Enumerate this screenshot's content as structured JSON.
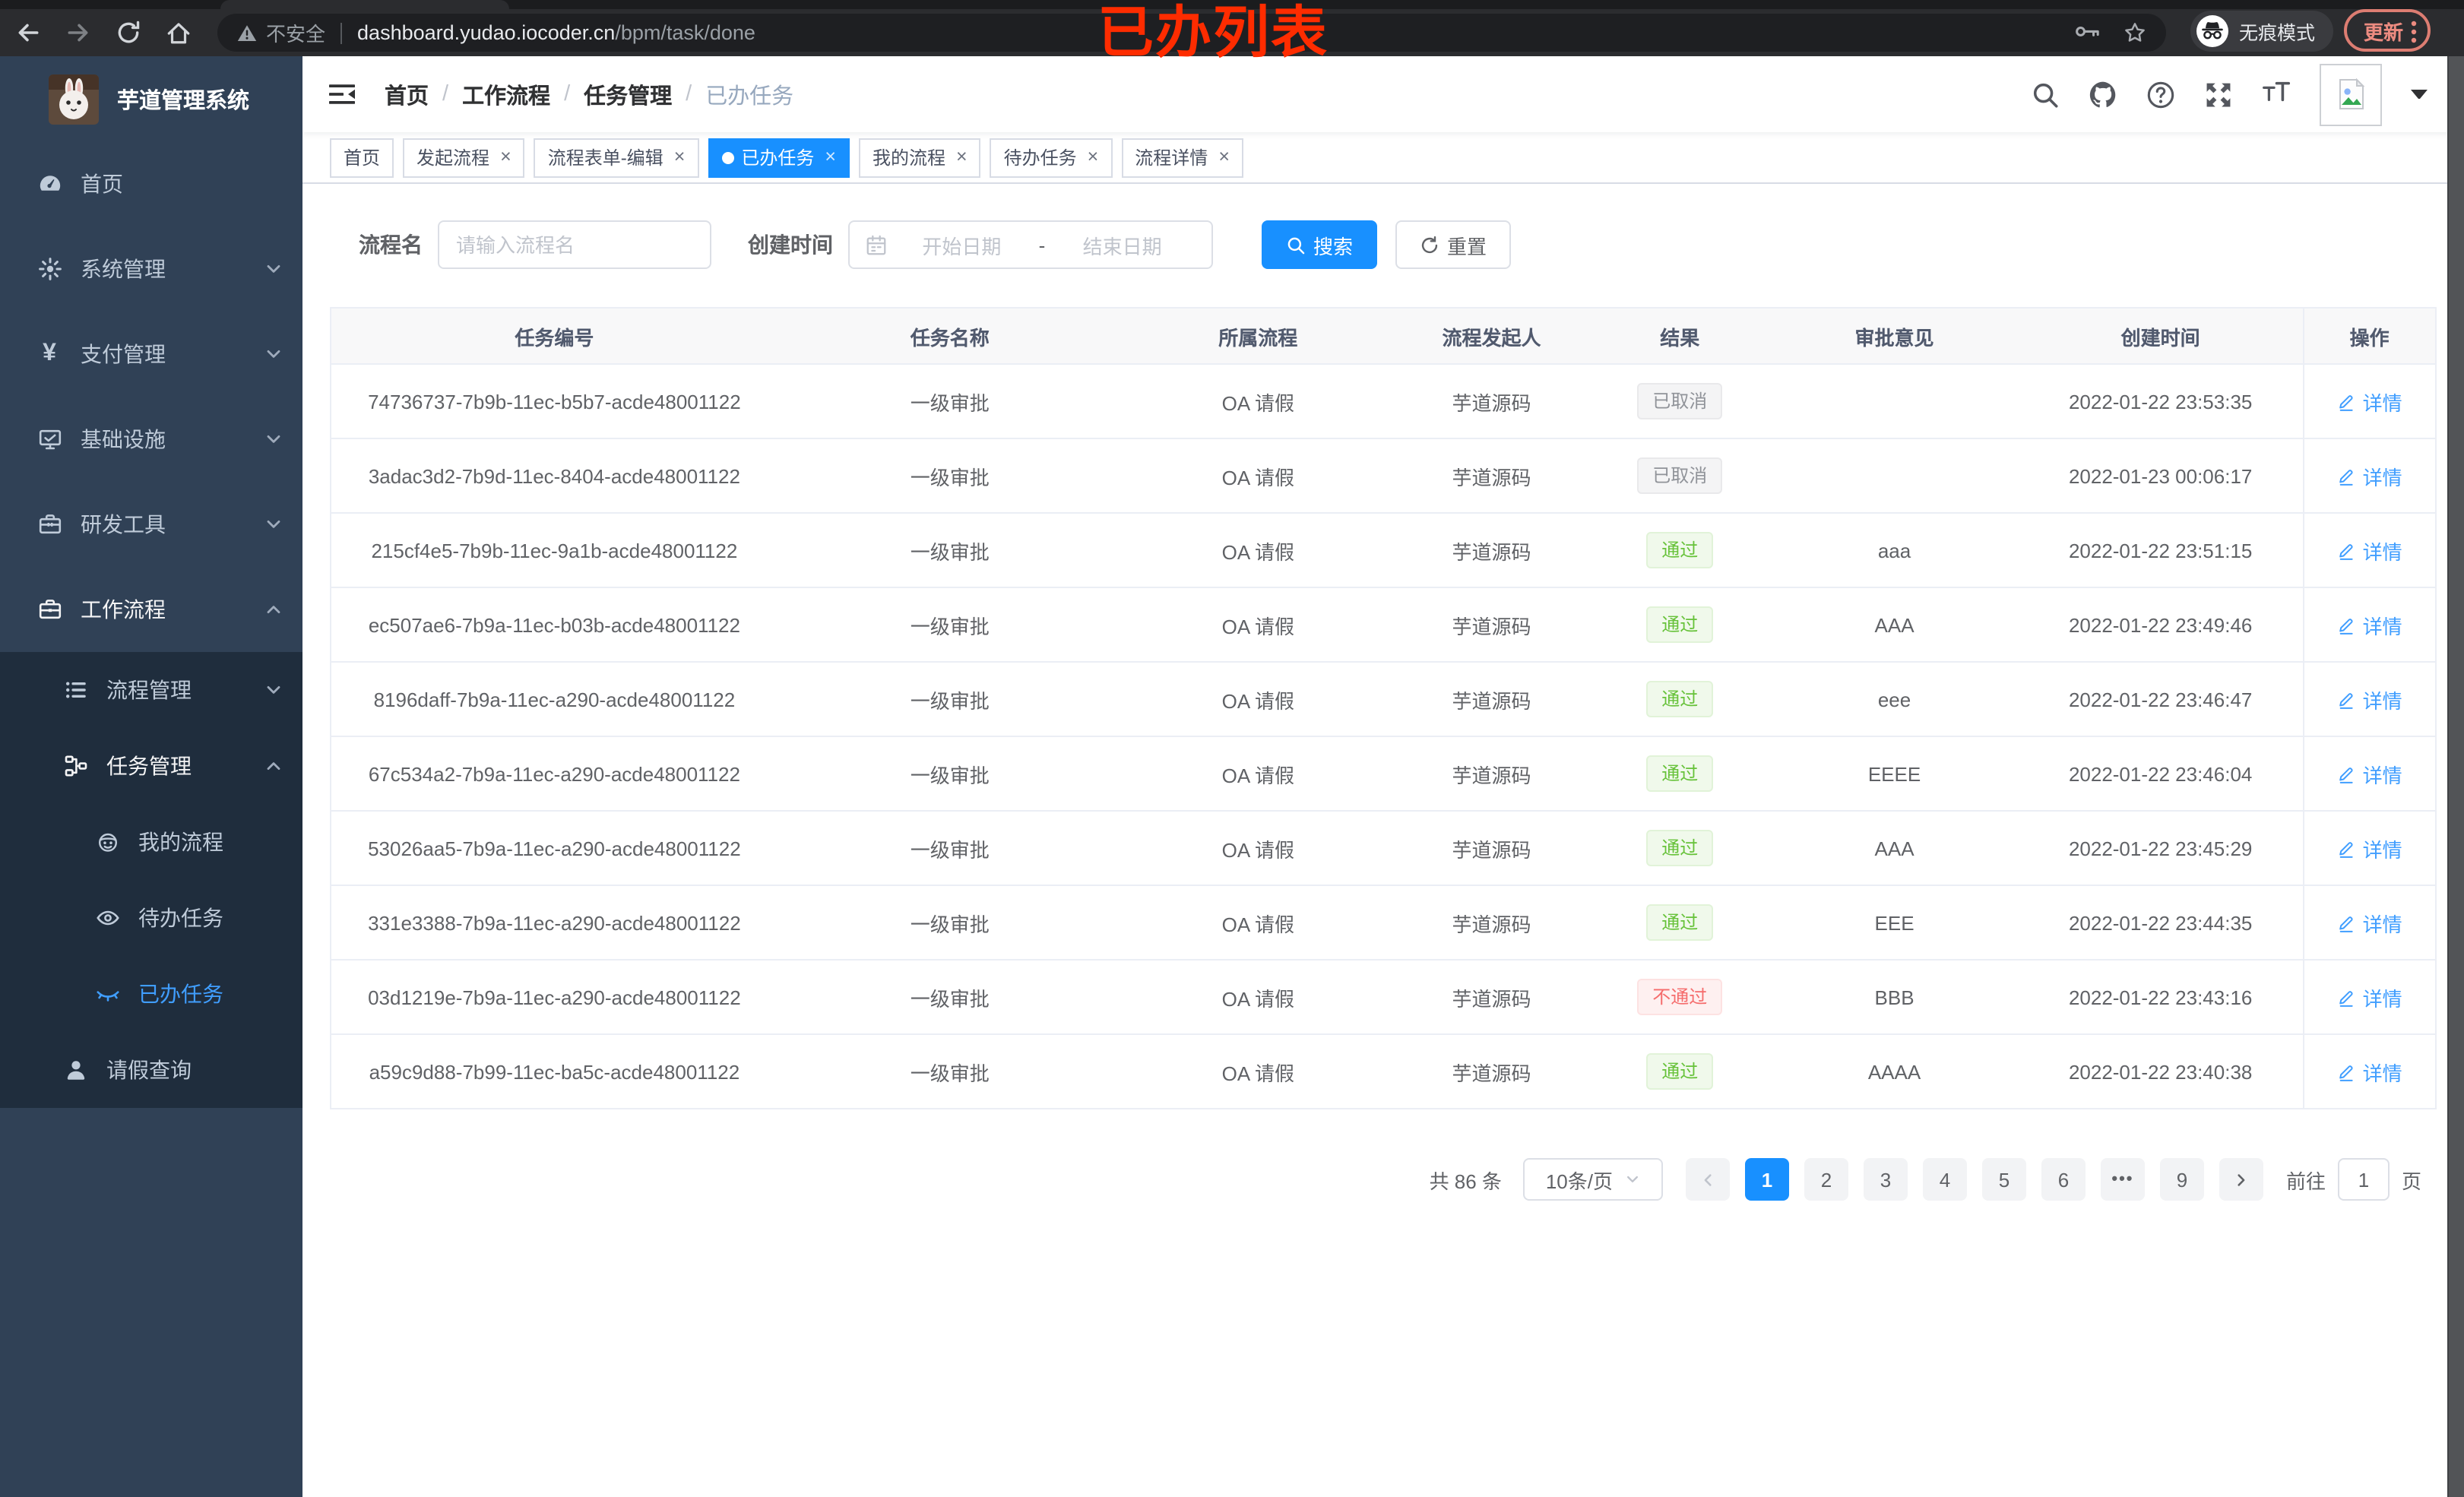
{
  "browser": {
    "security_label": "不安全",
    "url_host": "dashboard.yudao.iocoder.cn",
    "url_path": "/bpm/task/done",
    "incognito_label": "无痕模式",
    "update_label": "更新"
  },
  "annotation": "已办列表",
  "sidebar": {
    "logo_title": "芋道管理系统",
    "menu": [
      {
        "label": "首页",
        "icon": "dashboard-icon",
        "depth": 0,
        "submenu": false,
        "chevron": null,
        "emphasized": false,
        "active": false
      },
      {
        "label": "系统管理",
        "icon": "gear-icon",
        "depth": 0,
        "submenu": false,
        "chevron": "down",
        "emphasized": false,
        "active": false
      },
      {
        "label": "支付管理",
        "icon": "yen-icon",
        "depth": 0,
        "submenu": false,
        "chevron": "down",
        "emphasized": false,
        "active": false
      },
      {
        "label": "基础设施",
        "icon": "monitor-icon",
        "depth": 0,
        "submenu": false,
        "chevron": "down",
        "emphasized": false,
        "active": false
      },
      {
        "label": "研发工具",
        "icon": "toolbox-icon",
        "depth": 0,
        "submenu": false,
        "chevron": "down",
        "emphasized": false,
        "active": false
      },
      {
        "label": "工作流程",
        "icon": "briefcase-icon",
        "depth": 0,
        "submenu": false,
        "chevron": "up",
        "emphasized": true,
        "active": false
      },
      {
        "label": "流程管理",
        "icon": "list-icon",
        "depth": 1,
        "submenu": true,
        "chevron": "down",
        "emphasized": false,
        "active": false
      },
      {
        "label": "任务管理",
        "icon": "flow-icon",
        "depth": 1,
        "submenu": true,
        "chevron": "up",
        "emphasized": true,
        "active": false
      },
      {
        "label": "我的流程",
        "icon": "robot-icon",
        "depth": 2,
        "submenu": true,
        "chevron": null,
        "emphasized": false,
        "active": false
      },
      {
        "label": "待办任务",
        "icon": "eye-open-icon",
        "depth": 2,
        "submenu": true,
        "chevron": null,
        "emphasized": false,
        "active": false
      },
      {
        "label": "已办任务",
        "icon": "eye-closed-icon",
        "depth": 2,
        "submenu": true,
        "chevron": null,
        "emphasized": false,
        "active": true
      },
      {
        "label": "请假查询",
        "icon": "user-icon",
        "depth": 1,
        "submenu": true,
        "chevron": null,
        "emphasized": false,
        "active": false
      }
    ]
  },
  "breadcrumb": {
    "items": [
      "首页",
      "工作流程",
      "任务管理",
      "已办任务"
    ],
    "separator": "/"
  },
  "tabs": [
    {
      "label": "首页",
      "closable": false,
      "active": false
    },
    {
      "label": "发起流程",
      "closable": true,
      "active": false
    },
    {
      "label": "流程表单-编辑",
      "closable": true,
      "active": false
    },
    {
      "label": "已办任务",
      "closable": true,
      "active": true
    },
    {
      "label": "我的流程",
      "closable": true,
      "active": false
    },
    {
      "label": "待办任务",
      "closable": true,
      "active": false
    },
    {
      "label": "流程详情",
      "closable": true,
      "active": false
    }
  ],
  "filter": {
    "name_label": "流程名",
    "name_placeholder": "请输入流程名",
    "time_label": "创建时间",
    "start_placeholder": "开始日期",
    "range_separator": "-",
    "end_placeholder": "结束日期",
    "search_label": "搜索",
    "reset_label": "重置"
  },
  "table": {
    "columns": [
      "任务编号",
      "任务名称",
      "所属流程",
      "流程发起人",
      "结果",
      "审批意见",
      "创建时间",
      "操作"
    ],
    "detail_label": "详情",
    "rows": [
      {
        "id": "74736737-7b9b-11ec-b5b7-acde48001122",
        "task_name": "一级审批",
        "process": "OA 请假",
        "starter": "芋道源码",
        "result": "已取消",
        "result_type": "info",
        "comment": "",
        "created": "2022-01-22 23:53:35"
      },
      {
        "id": "3adac3d2-7b9d-11ec-8404-acde48001122",
        "task_name": "一级审批",
        "process": "OA 请假",
        "starter": "芋道源码",
        "result": "已取消",
        "result_type": "info",
        "comment": "",
        "created": "2022-01-23 00:06:17"
      },
      {
        "id": "215cf4e5-7b9b-11ec-9a1b-acde48001122",
        "task_name": "一级审批",
        "process": "OA 请假",
        "starter": "芋道源码",
        "result": "通过",
        "result_type": "success",
        "comment": "aaa",
        "created": "2022-01-22 23:51:15"
      },
      {
        "id": "ec507ae6-7b9a-11ec-b03b-acde48001122",
        "task_name": "一级审批",
        "process": "OA 请假",
        "starter": "芋道源码",
        "result": "通过",
        "result_type": "success",
        "comment": "AAA",
        "created": "2022-01-22 23:49:46"
      },
      {
        "id": "8196daff-7b9a-11ec-a290-acde48001122",
        "task_name": "一级审批",
        "process": "OA 请假",
        "starter": "芋道源码",
        "result": "通过",
        "result_type": "success",
        "comment": "eee",
        "created": "2022-01-22 23:46:47"
      },
      {
        "id": "67c534a2-7b9a-11ec-a290-acde48001122",
        "task_name": "一级审批",
        "process": "OA 请假",
        "starter": "芋道源码",
        "result": "通过",
        "result_type": "success",
        "comment": "EEEE",
        "created": "2022-01-22 23:46:04"
      },
      {
        "id": "53026aa5-7b9a-11ec-a290-acde48001122",
        "task_name": "一级审批",
        "process": "OA 请假",
        "starter": "芋道源码",
        "result": "通过",
        "result_type": "success",
        "comment": "AAA",
        "created": "2022-01-22 23:45:29"
      },
      {
        "id": "331e3388-7b9a-11ec-a290-acde48001122",
        "task_name": "一级审批",
        "process": "OA 请假",
        "starter": "芋道源码",
        "result": "通过",
        "result_type": "success",
        "comment": "EEE",
        "created": "2022-01-22 23:44:35"
      },
      {
        "id": "03d1219e-7b9a-11ec-a290-acde48001122",
        "task_name": "一级审批",
        "process": "OA 请假",
        "starter": "芋道源码",
        "result": "不通过",
        "result_type": "danger",
        "comment": "BBB",
        "created": "2022-01-22 23:43:16"
      },
      {
        "id": "a59c9d88-7b99-11ec-ba5c-acde48001122",
        "task_name": "一级审批",
        "process": "OA 请假",
        "starter": "芋道源码",
        "result": "通过",
        "result_type": "success",
        "comment": "AAAA",
        "created": "2022-01-22 23:40:38"
      }
    ]
  },
  "pagination": {
    "total_label": "共 86 条",
    "page_size_label": "10条/页",
    "pages": [
      "1",
      "2",
      "3",
      "4",
      "5",
      "6",
      "ellipsis",
      "9"
    ],
    "active_page": "1",
    "goto_label": "前往",
    "goto_value": "1",
    "unit_label": "页"
  }
}
